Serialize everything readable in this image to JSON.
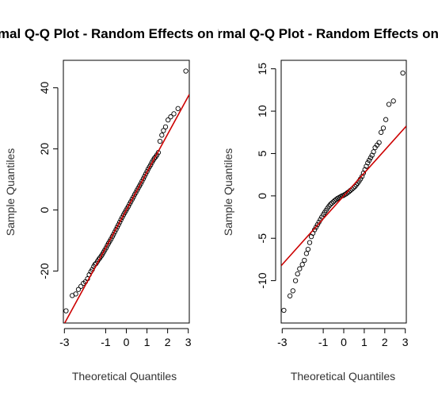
{
  "chart_data": [
    {
      "type": "scatter",
      "title": "Normal Q-Q Plot - Random Effects on Intercept",
      "xlabel": "Theoretical Quantiles",
      "ylabel": "Sample Quantiles",
      "xlim": [
        -3.05,
        3.05
      ],
      "ylim": [
        -37,
        49
      ],
      "xticks": [
        -3,
        -1,
        0,
        1,
        2,
        3
      ],
      "yticks": [
        -20,
        0,
        20,
        40
      ],
      "reference_line": {
        "intercept": 0,
        "slope": 12.4,
        "color": "#cc0000"
      },
      "points": [
        [
          -2.92,
          -33
        ],
        [
          -2.62,
          -28
        ],
        [
          -2.45,
          -27.5
        ],
        [
          -2.32,
          -26
        ],
        [
          -2.2,
          -25
        ],
        [
          -2.08,
          -24
        ],
        [
          -1.98,
          -23.5
        ],
        [
          -1.88,
          -22.5
        ],
        [
          -1.8,
          -21.2
        ],
        [
          -1.72,
          -20.2
        ],
        [
          -1.65,
          -19.5
        ],
        [
          -1.58,
          -18.5
        ],
        [
          -1.52,
          -17.8
        ],
        [
          -1.46,
          -17.5
        ],
        [
          -1.4,
          -16.8
        ],
        [
          -1.34,
          -16.2
        ],
        [
          -1.28,
          -15.7
        ],
        [
          -1.22,
          -15.1
        ],
        [
          -1.16,
          -14.5
        ],
        [
          -1.1,
          -13.8
        ],
        [
          -1.04,
          -13.1
        ],
        [
          -0.98,
          -12.4
        ],
        [
          -0.92,
          -11.6
        ],
        [
          -0.86,
          -10.9
        ],
        [
          -0.8,
          -10.2
        ],
        [
          -0.74,
          -9.5
        ],
        [
          -0.68,
          -8.7
        ],
        [
          -0.62,
          -8.0
        ],
        [
          -0.56,
          -7.2
        ],
        [
          -0.5,
          -6.4
        ],
        [
          -0.44,
          -5.6
        ],
        [
          -0.38,
          -4.8
        ],
        [
          -0.32,
          -4.0
        ],
        [
          -0.26,
          -3.2
        ],
        [
          -0.2,
          -2.4
        ],
        [
          -0.14,
          -1.6
        ],
        [
          -0.08,
          -0.9
        ],
        [
          -0.02,
          -0.2
        ],
        [
          0.04,
          0.5
        ],
        [
          0.1,
          1.2
        ],
        [
          0.16,
          2.0
        ],
        [
          0.22,
          2.7
        ],
        [
          0.28,
          3.5
        ],
        [
          0.34,
          4.2
        ],
        [
          0.4,
          5.0
        ],
        [
          0.46,
          5.7
        ],
        [
          0.52,
          6.5
        ],
        [
          0.58,
          7.2
        ],
        [
          0.64,
          7.9
        ],
        [
          0.7,
          8.6
        ],
        [
          0.76,
          9.4
        ],
        [
          0.82,
          10.2
        ],
        [
          0.88,
          11.0
        ],
        [
          0.94,
          11.8
        ],
        [
          1.0,
          12.6
        ],
        [
          1.06,
          13.4
        ],
        [
          1.12,
          14.1
        ],
        [
          1.18,
          14.8
        ],
        [
          1.24,
          15.6
        ],
        [
          1.3,
          16.3
        ],
        [
          1.36,
          16.9
        ],
        [
          1.42,
          17.4
        ],
        [
          1.48,
          18.0
        ],
        [
          1.55,
          18.8
        ],
        [
          1.63,
          22.5
        ],
        [
          1.72,
          24.5
        ],
        [
          1.8,
          26.0
        ],
        [
          1.9,
          27.2
        ],
        [
          2.02,
          29.5
        ],
        [
          2.15,
          30.5
        ],
        [
          2.3,
          31.5
        ],
        [
          2.5,
          33.2
        ],
        [
          2.88,
          45.5
        ]
      ]
    },
    {
      "type": "scatter",
      "title": "Normal Q-Q Plot - Random Effects on Blocks",
      "xlabel": "Theoretical Quantiles",
      "ylabel": "Sample Quantiles",
      "xlim": [
        -3.05,
        3.05
      ],
      "ylim": [
        -15,
        16
      ],
      "xticks": [
        -3,
        -1,
        0,
        1,
        2,
        3
      ],
      "yticks": [
        -10,
        -5,
        0,
        5,
        10,
        15
      ],
      "reference_line": {
        "intercept": 0,
        "slope": 2.7,
        "color": "#cc0000"
      },
      "points": [
        [
          -2.92,
          -13.5
        ],
        [
          -2.62,
          -11.8
        ],
        [
          -2.48,
          -11.2
        ],
        [
          -2.35,
          -10.0
        ],
        [
          -2.25,
          -9.2
        ],
        [
          -2.15,
          -8.6
        ],
        [
          -2.02,
          -8.1
        ],
        [
          -1.92,
          -7.6
        ],
        [
          -1.82,
          -6.8
        ],
        [
          -1.74,
          -6.3
        ],
        [
          -1.66,
          -5.5
        ],
        [
          -1.58,
          -4.8
        ],
        [
          -1.5,
          -4.4
        ],
        [
          -1.42,
          -4.0
        ],
        [
          -1.35,
          -3.7
        ],
        [
          -1.28,
          -3.4
        ],
        [
          -1.21,
          -3.1
        ],
        [
          -1.14,
          -2.8
        ],
        [
          -1.07,
          -2.5
        ],
        [
          -1.0,
          -2.2
        ],
        [
          -0.93,
          -1.95
        ],
        [
          -0.86,
          -1.7
        ],
        [
          -0.79,
          -1.45
        ],
        [
          -0.72,
          -1.2
        ],
        [
          -0.65,
          -1.0
        ],
        [
          -0.58,
          -0.85
        ],
        [
          -0.51,
          -0.7
        ],
        [
          -0.44,
          -0.55
        ],
        [
          -0.37,
          -0.42
        ],
        [
          -0.3,
          -0.3
        ],
        [
          -0.23,
          -0.2
        ],
        [
          -0.16,
          -0.1
        ],
        [
          -0.09,
          0.0
        ],
        [
          -0.02,
          0.05
        ],
        [
          0.05,
          0.15
        ],
        [
          0.12,
          0.25
        ],
        [
          0.19,
          0.4
        ],
        [
          0.26,
          0.5
        ],
        [
          0.33,
          0.65
        ],
        [
          0.4,
          0.8
        ],
        [
          0.47,
          0.95
        ],
        [
          0.54,
          1.1
        ],
        [
          0.61,
          1.3
        ],
        [
          0.68,
          1.5
        ],
        [
          0.75,
          1.75
        ],
        [
          0.82,
          2.0
        ],
        [
          0.89,
          2.3
        ],
        [
          0.96,
          2.7
        ],
        [
          1.03,
          3.1
        ],
        [
          1.1,
          3.5
        ],
        [
          1.17,
          3.9
        ],
        [
          1.24,
          4.2
        ],
        [
          1.31,
          4.5
        ],
        [
          1.38,
          4.8
        ],
        [
          1.45,
          5.2
        ],
        [
          1.53,
          5.7
        ],
        [
          1.62,
          6.0
        ],
        [
          1.72,
          6.3
        ],
        [
          1.82,
          7.5
        ],
        [
          1.93,
          8.0
        ],
        [
          2.05,
          9.0
        ],
        [
          2.2,
          10.8
        ],
        [
          2.42,
          11.2
        ],
        [
          2.88,
          14.5
        ]
      ]
    }
  ]
}
